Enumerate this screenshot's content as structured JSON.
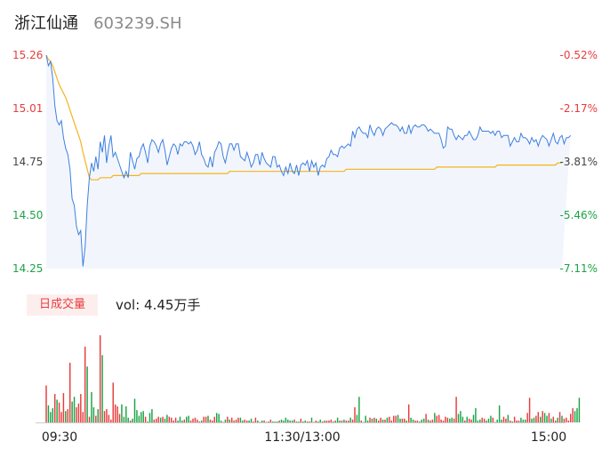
{
  "stock": {
    "name": "浙江仙通",
    "code": "603239.SH"
  },
  "volume_panel": {
    "tag": "日成交量",
    "text": "vol: 4.45万手"
  },
  "colors": {
    "price_line": "#3d7fe0",
    "avg_line": "#f5b21f",
    "up": "#e83c3c",
    "down": "#1ba345",
    "area": "#f2f6fc"
  },
  "chart_data": {
    "type": "line",
    "price_ticks": [
      "15.26",
      "15.01",
      "14.75",
      "14.50",
      "14.25"
    ],
    "pct_ticks": [
      "-0.52%",
      "-2.17%",
      "-3.81%",
      "-5.46%",
      "-7.11%"
    ],
    "time_labels": [
      "09:30",
      "11:30/13:00",
      "15:00"
    ],
    "ylim": [
      14.25,
      15.26
    ],
    "x_points": 240,
    "series": [
      {
        "key": "price",
        "values": [
          15.26,
          15.21,
          15.23,
          15.15,
          15.02,
          14.95,
          14.93,
          14.95,
          14.87,
          14.82,
          14.79,
          14.72,
          14.58,
          14.55,
          14.45,
          14.41,
          14.43,
          14.26,
          14.35,
          14.55,
          14.68,
          14.75,
          14.71,
          14.78,
          14.72,
          14.85,
          14.8,
          14.88,
          14.75,
          14.83,
          14.88,
          14.78,
          14.8,
          14.77,
          14.74,
          14.71,
          14.68,
          14.71,
          14.68,
          14.8,
          14.76,
          14.72,
          14.77,
          14.78,
          14.82,
          14.84,
          14.8,
          14.75,
          14.83,
          14.86,
          14.85,
          14.83,
          14.8,
          14.84,
          14.86,
          14.81,
          14.74,
          14.78,
          14.82,
          14.84,
          14.83,
          14.79,
          14.84,
          14.83,
          14.85,
          14.85,
          14.84,
          14.85,
          14.83,
          14.79,
          14.81,
          14.85,
          14.79,
          14.77,
          14.74,
          14.73,
          14.78,
          14.73,
          14.8,
          14.82,
          14.85,
          14.84,
          14.78,
          14.75,
          14.8,
          14.84,
          14.84,
          14.81,
          14.84,
          14.84,
          14.78,
          14.77,
          14.76,
          14.8,
          14.77,
          14.73,
          14.75,
          14.79,
          14.79,
          14.74,
          14.8,
          14.77,
          14.75,
          14.74,
          14.73,
          14.78,
          14.78,
          14.73,
          14.74,
          14.71,
          14.69,
          14.73,
          14.7,
          14.75,
          14.71,
          14.7,
          14.74,
          14.69,
          14.74,
          14.75,
          14.74,
          14.76,
          14.71,
          14.76,
          14.73,
          14.75,
          14.69,
          14.73,
          14.74,
          14.73,
          14.77,
          14.78,
          14.81,
          14.79,
          14.79,
          14.78,
          14.82,
          14.83,
          14.82,
          14.83,
          14.84,
          14.83,
          14.9,
          14.87,
          14.91,
          14.92,
          14.9,
          14.89,
          14.89,
          14.87,
          14.93,
          14.9,
          14.88,
          14.91,
          14.92,
          14.91,
          14.88,
          14.91,
          14.92,
          14.93,
          14.94,
          14.93,
          14.93,
          14.92,
          14.9,
          14.92,
          14.89,
          14.89,
          14.93,
          14.89,
          14.92,
          14.93,
          14.92,
          14.92,
          14.93,
          14.93,
          14.92,
          14.9,
          14.91,
          14.9,
          14.89,
          14.89,
          14.89,
          14.86,
          14.82,
          14.83,
          14.92,
          14.91,
          14.91,
          14.88,
          14.86,
          14.88,
          14.87,
          14.86,
          14.88,
          14.88,
          14.9,
          14.88,
          14.86,
          14.86,
          14.88,
          14.92,
          14.9,
          14.9,
          14.9,
          14.9,
          14.89,
          14.9,
          14.88,
          14.9,
          14.9,
          14.87,
          14.88,
          14.88,
          14.88,
          14.83,
          14.85,
          14.87,
          14.85,
          14.85,
          14.89,
          14.87,
          14.87,
          14.86,
          14.84,
          14.87,
          14.85,
          14.86,
          14.83,
          14.86,
          14.88,
          14.87,
          14.86,
          14.83,
          14.86,
          14.89,
          14.85,
          14.84,
          14.87,
          14.88,
          14.84,
          14.87,
          14.87,
          14.88
        ]
      },
      {
        "key": "avg",
        "values": [
          15.26,
          15.24,
          15.23,
          15.21,
          15.18,
          15.15,
          15.12,
          15.1,
          15.08,
          15.06,
          15.03,
          15.0,
          14.97,
          14.94,
          14.91,
          14.88,
          14.85,
          14.8,
          14.76,
          14.72,
          14.68,
          14.67,
          14.67,
          14.67,
          14.67,
          14.68,
          14.68,
          14.68,
          14.68,
          14.68,
          14.68,
          14.69,
          14.69,
          14.69,
          14.69,
          14.69,
          14.69,
          14.69,
          14.69,
          14.69,
          14.69,
          14.69,
          14.69,
          14.69,
          14.7,
          14.7,
          14.7,
          14.7,
          14.7,
          14.7,
          14.7,
          14.7,
          14.7,
          14.7,
          14.7,
          14.7,
          14.7,
          14.7,
          14.7,
          14.7,
          14.7,
          14.7,
          14.7,
          14.7,
          14.7,
          14.7,
          14.7,
          14.7,
          14.7,
          14.7,
          14.7,
          14.7,
          14.7,
          14.7,
          14.7,
          14.7,
          14.7,
          14.7,
          14.7,
          14.7,
          14.7,
          14.7,
          14.7,
          14.7,
          14.7,
          14.71,
          14.71,
          14.71,
          14.71,
          14.71,
          14.71,
          14.71,
          14.71,
          14.71,
          14.71,
          14.71,
          14.71,
          14.71,
          14.71,
          14.71,
          14.71,
          14.71,
          14.71,
          14.71,
          14.71,
          14.71,
          14.71,
          14.71,
          14.71,
          14.71,
          14.71,
          14.71,
          14.71,
          14.71,
          14.71,
          14.71,
          14.71,
          14.71,
          14.71,
          14.71,
          14.71,
          14.71,
          14.71,
          14.71,
          14.71,
          14.71,
          14.71,
          14.71,
          14.71,
          14.71,
          14.71,
          14.71,
          14.71,
          14.71,
          14.71,
          14.71,
          14.71,
          14.71,
          14.71,
          14.72,
          14.72,
          14.72,
          14.72,
          14.72,
          14.72,
          14.72,
          14.72,
          14.72,
          14.72,
          14.72,
          14.72,
          14.72,
          14.72,
          14.72,
          14.72,
          14.72,
          14.72,
          14.72,
          14.72,
          14.72,
          14.72,
          14.72,
          14.72,
          14.72,
          14.72,
          14.72,
          14.72,
          14.72,
          14.72,
          14.72,
          14.72,
          14.72,
          14.72,
          14.72,
          14.72,
          14.72,
          14.72,
          14.72,
          14.72,
          14.72,
          14.72,
          14.73,
          14.73,
          14.73,
          14.73,
          14.73,
          14.73,
          14.73,
          14.73,
          14.73,
          14.73,
          14.73,
          14.73,
          14.73,
          14.73,
          14.73,
          14.73,
          14.73,
          14.73,
          14.73,
          14.73,
          14.73,
          14.73,
          14.73,
          14.73,
          14.73,
          14.73,
          14.73,
          14.73,
          14.74,
          14.74,
          14.74,
          14.74,
          14.74,
          14.74,
          14.74,
          14.74,
          14.74,
          14.74,
          14.74,
          14.74,
          14.74,
          14.74,
          14.74,
          14.74,
          14.74,
          14.74,
          14.74,
          14.74,
          14.74,
          14.74,
          14.74,
          14.74,
          14.74,
          14.74,
          14.74,
          14.74,
          14.75,
          14.75,
          14.75
        ]
      }
    ],
    "volume": {
      "values": [
        0.39,
        0.18,
        0.11,
        0.15,
        0.3,
        0.24,
        0.21,
        0.11,
        0.31,
        0.12,
        0.14,
        0.63,
        0.22,
        0.27,
        0.16,
        0.2,
        0.3,
        0.11,
        0.8,
        0.59,
        0.06,
        0.32,
        0.16,
        0.07,
        0.14,
        0.92,
        0.71,
        0.12,
        0.14,
        0.08,
        0.03,
        0.42,
        0.19,
        0.17,
        0.09,
        0.19,
        0.06,
        0.17,
        0.05,
        0.02,
        0.04,
        0.25,
        0.13,
        0.07,
        0.11,
        0.12,
        0.06,
        0.01,
        0.1,
        0.14,
        0.03,
        0.04,
        0.06,
        0.05,
        0.06,
        0.04,
        0.08,
        0.06,
        0.05,
        0.02,
        0.05,
        0.02,
        0.06,
        0.02,
        0.03,
        0.06,
        0.07,
        0.02,
        0.04,
        0.05,
        0.03,
        0.01,
        0.02,
        0.06,
        0.06,
        0.07,
        0.03,
        0.02,
        0.06,
        0.1,
        0.09,
        0.02,
        0.0,
        0.03,
        0.06,
        0.03,
        0.05,
        0.02,
        0.03,
        0.05,
        0.05,
        0.02,
        0.03,
        0.02,
        0.02,
        0.04,
        0.01,
        0.05,
        0.02,
        0.0,
        0.02,
        0.02,
        0.0,
        0.01,
        0.03,
        0.01,
        0.01,
        0.01,
        0.02,
        0.03,
        0.02,
        0.05,
        0.03,
        0.02,
        0.02,
        0.03,
        0.01,
        0.01,
        0.04,
        0.01,
        0.02,
        0.01,
        0.01,
        0.05,
        0.0,
        0.02,
        0.01,
        0.03,
        0.01,
        0.02,
        0.02,
        0.02,
        0.03,
        0.01,
        0.02,
        0.05,
        0.02,
        0.02,
        0.03,
        0.02,
        0.02,
        0.05,
        0.03,
        0.16,
        0.08,
        0.27,
        0.02,
        0.0,
        0.07,
        0.02,
        0.05,
        0.04,
        0.05,
        0.04,
        0.02,
        0.05,
        0.03,
        0.03,
        0.05,
        0.06,
        0.02,
        0.07,
        0.07,
        0.08,
        0.04,
        0.04,
        0.04,
        0.02,
        0.19,
        0.05,
        0.03,
        0.02,
        0.02,
        0.01,
        0.03,
        0.04,
        0.09,
        0.03,
        0.02,
        0.03,
        0.1,
        0.07,
        0.08,
        0.03,
        0.02,
        0.06,
        0.05,
        0.04,
        0.05,
        0.04,
        0.27,
        0.09,
        0.12,
        0.06,
        0.02,
        0.06,
        0.04,
        0.03,
        0.08,
        0.15,
        0.02,
        0.03,
        0.05,
        0.04,
        0.02,
        0.04,
        0.07,
        0.05,
        0.0,
        0.03,
        0.18,
        0.03,
        0.06,
        0.04,
        0.08,
        0.02,
        0.01,
        0.06,
        0.02,
        0.02,
        0.05,
        0.03,
        0.03,
        0.1,
        0.26,
        0.04,
        0.05,
        0.07,
        0.11,
        0.06,
        0.12,
        0.1,
        0.07,
        0.1,
        0.04,
        0.06,
        0.02,
        0.05,
        0.11,
        0.07,
        0.04,
        0.05,
        0.02,
        0.09,
        0.15,
        0.12,
        0.15,
        0.26
      ],
      "up": [
        1,
        0,
        0,
        0,
        1,
        0,
        1,
        1,
        1,
        0,
        1,
        1,
        0,
        0,
        1,
        1,
        1,
        1,
        1,
        0,
        1,
        0,
        0,
        1,
        0,
        1,
        0,
        1,
        1,
        1,
        1,
        1,
        1,
        1,
        1,
        0,
        0,
        0,
        0,
        1,
        0,
        0,
        0,
        0,
        0,
        0,
        1,
        0,
        0,
        0,
        1,
        1,
        1,
        0,
        1,
        0,
        0,
        1,
        1,
        1,
        1,
        0,
        0,
        0,
        1,
        0,
        0,
        1,
        1,
        1,
        1,
        1,
        0,
        1,
        1,
        0,
        1,
        1,
        1,
        0,
        0,
        0,
        1,
        0,
        1,
        0,
        1,
        1,
        1,
        1,
        0,
        0,
        1,
        1,
        0,
        0,
        1,
        1,
        0,
        1,
        0,
        1,
        1,
        0,
        1,
        0,
        0,
        0,
        1,
        0,
        0,
        0,
        0,
        0,
        0,
        1,
        0,
        0,
        1,
        0,
        0,
        1,
        1,
        0,
        1,
        1,
        0,
        0,
        1,
        0,
        1,
        1,
        1,
        0,
        1,
        0,
        0,
        1,
        0,
        1,
        1,
        0,
        1,
        1,
        0,
        0,
        1,
        0,
        0,
        0,
        1,
        0,
        1,
        0,
        1,
        1,
        0,
        1,
        0,
        1,
        1,
        1,
        1,
        0,
        0,
        1,
        1,
        0,
        1,
        0,
        0,
        1,
        1,
        0,
        0,
        0,
        1,
        0,
        1,
        1,
        0,
        1,
        1,
        1,
        1,
        1,
        1,
        0,
        0,
        1,
        1,
        0,
        0,
        0,
        1,
        0,
        1,
        1,
        0,
        0,
        0,
        0,
        1,
        1,
        0,
        0,
        0,
        1,
        1,
        0,
        0,
        0,
        1,
        1,
        0,
        1,
        0,
        1,
        1,
        1,
        0,
        0,
        0,
        1,
        1,
        0,
        0,
        1,
        1,
        0,
        1,
        0,
        0,
        1,
        0,
        1,
        1,
        0,
        1,
        0,
        1,
        1,
        1,
        1,
        1,
        0
      ]
    }
  }
}
